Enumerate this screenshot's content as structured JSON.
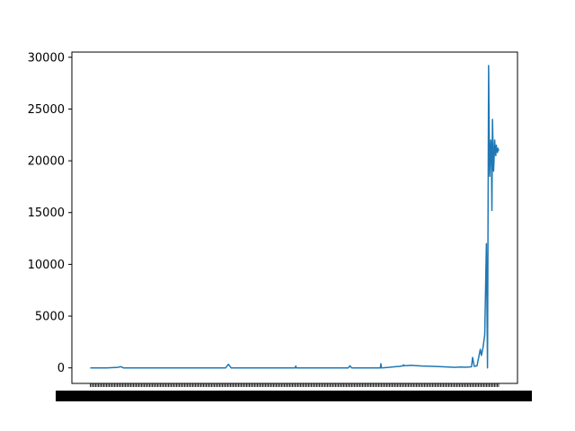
{
  "chart_data": {
    "type": "line",
    "title": "",
    "xlabel": "",
    "ylabel": "",
    "ylim": [
      -1500,
      30500
    ],
    "yticks": [
      0,
      5000,
      10000,
      15000,
      20000,
      25000,
      30000
    ],
    "ytick_labels": [
      "0",
      "5000",
      "10000",
      "15000",
      "20000",
      "25000",
      "30000"
    ],
    "x_tick_labels_overlapping": true,
    "grid": false,
    "legend": "none",
    "series": [
      {
        "color": "#1f77b4",
        "x": [
          0,
          30,
          50,
          55,
          60,
          100,
          150,
          200,
          245,
          250,
          255,
          300,
          350,
          371,
          372,
          373,
          400,
          450,
          467,
          470,
          473,
          480,
          500,
          525,
          526,
          527,
          540,
          550,
          560,
          566,
          567,
          568,
          580,
          600,
          620,
          640,
          660,
          670,
          680,
          690,
          692,
          695,
          700,
          706,
          708,
          711,
          714,
          717,
          719,
          721,
          722,
          723,
          725,
          726,
          727,
          728,
          730,
          731,
          732,
          733,
          734,
          735,
          736,
          737,
          738,
          739,
          740
        ],
        "y": [
          0,
          0,
          50,
          120,
          0,
          0,
          0,
          0,
          0,
          350,
          0,
          0,
          0,
          0,
          180,
          0,
          0,
          0,
          0,
          200,
          0,
          0,
          0,
          0,
          400,
          0,
          50,
          100,
          150,
          200,
          300,
          200,
          250,
          180,
          150,
          100,
          50,
          80,
          60,
          100,
          1000,
          150,
          200,
          1800,
          1200,
          2000,
          3200,
          12000,
          0,
          29200,
          23000,
          18500,
          22000,
          21000,
          15200,
          24000,
          19000,
          20300,
          22000,
          21000,
          20500,
          21500,
          21000,
          20800,
          21200,
          21000,
          21000
        ]
      }
    ]
  }
}
